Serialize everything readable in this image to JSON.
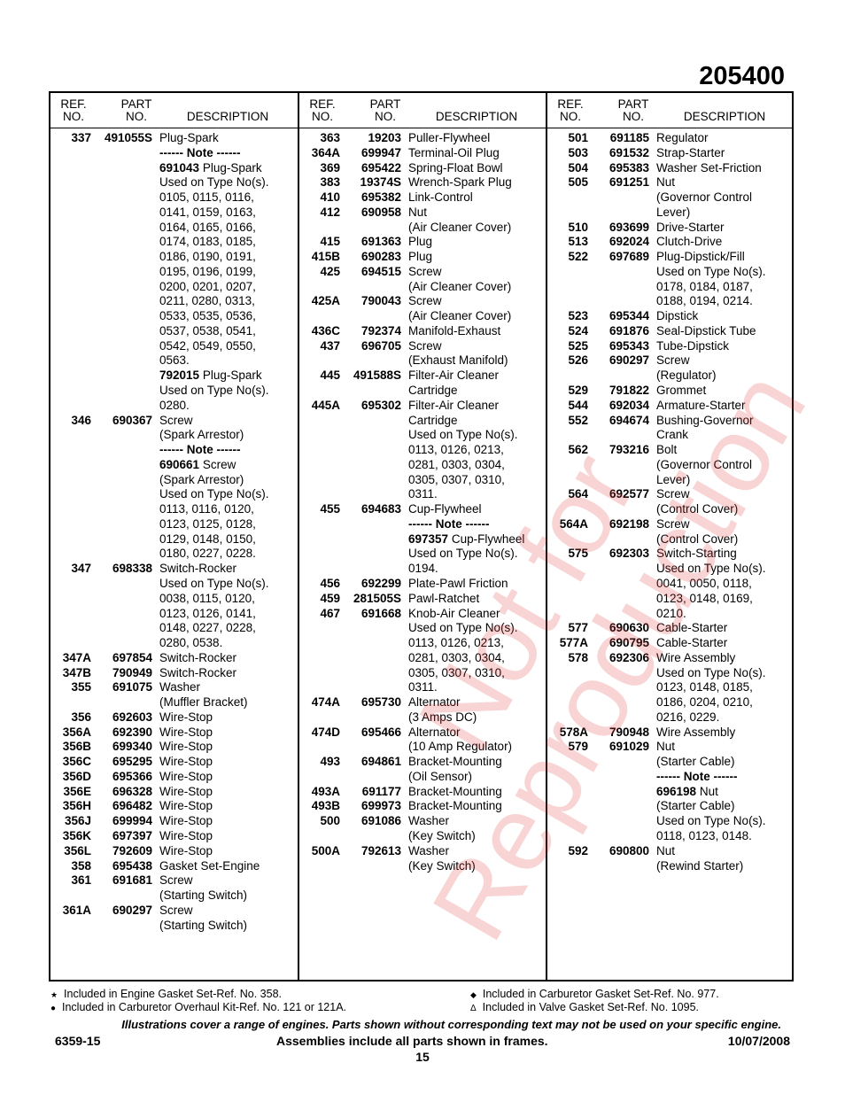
{
  "model": "205400",
  "headers": {
    "ref": "REF.\nNO.",
    "part": "PART\nNO.",
    "desc": "DESCRIPTION"
  },
  "watermark": "Not for\nReproduction",
  "columns": [
    [
      [
        "337",
        "491055S",
        "",
        "Plug-Spark"
      ],
      [
        "",
        "",
        "------ Note ------",
        ""
      ],
      [
        "",
        "",
        "691043",
        "Plug-Spark"
      ],
      [
        "",
        "",
        "",
        "Used on Type No(s)."
      ],
      [
        "",
        "",
        "",
        "0105, 0115, 0116,"
      ],
      [
        "",
        "",
        "",
        "0141, 0159, 0163,"
      ],
      [
        "",
        "",
        "",
        "0164, 0165, 0166,"
      ],
      [
        "",
        "",
        "",
        "0174, 0183, 0185,"
      ],
      [
        "",
        "",
        "",
        "0186, 0190, 0191,"
      ],
      [
        "",
        "",
        "",
        "0195, 0196, 0199,"
      ],
      [
        "",
        "",
        "",
        "0200, 0201, 0207,"
      ],
      [
        "",
        "",
        "",
        "0211, 0280, 0313,"
      ],
      [
        "",
        "",
        "",
        "0533, 0535, 0536,"
      ],
      [
        "",
        "",
        "",
        "0537, 0538, 0541,"
      ],
      [
        "",
        "",
        "",
        "0542, 0549, 0550,"
      ],
      [
        "",
        "",
        "",
        "0563."
      ],
      [
        "",
        "",
        "792015",
        "Plug-Spark"
      ],
      [
        "",
        "",
        "",
        "Used on Type No(s)."
      ],
      [
        "",
        "",
        "",
        "0280."
      ],
      [
        "346",
        "690367",
        "",
        "Screw"
      ],
      [
        "",
        "",
        "",
        "(Spark Arrestor)"
      ],
      [
        "",
        "",
        "------ Note ------",
        ""
      ],
      [
        "",
        "",
        "690661",
        "Screw"
      ],
      [
        "",
        "",
        "",
        "(Spark Arrestor)"
      ],
      [
        "",
        "",
        "",
        "Used on Type No(s)."
      ],
      [
        "",
        "",
        "",
        "0113, 0116, 0120,"
      ],
      [
        "",
        "",
        "",
        "0123, 0125, 0128,"
      ],
      [
        "",
        "",
        "",
        "0129, 0148, 0150,"
      ],
      [
        "",
        "",
        "",
        "0180, 0227, 0228."
      ],
      [
        "347",
        "698338",
        "",
        "Switch-Rocker"
      ],
      [
        "",
        "",
        "",
        "Used on Type No(s)."
      ],
      [
        "",
        "",
        "",
        "0038, 0115, 0120,"
      ],
      [
        "",
        "",
        "",
        "0123, 0126, 0141,"
      ],
      [
        "",
        "",
        "",
        "0148, 0227, 0228,"
      ],
      [
        "",
        "",
        "",
        "0280, 0538."
      ],
      [
        "347A",
        "697854",
        "",
        "Switch-Rocker"
      ],
      [
        "347B",
        "790949",
        "",
        "Switch-Rocker"
      ],
      [
        "355",
        "691075",
        "",
        "Washer"
      ],
      [
        "",
        "",
        "",
        "(Muffler Bracket)"
      ],
      [
        "356",
        "692603",
        "",
        "Wire-Stop"
      ],
      [
        "356A",
        "692390",
        "",
        "Wire-Stop"
      ],
      [
        "356B",
        "699340",
        "",
        "Wire-Stop"
      ],
      [
        "356C",
        "695295",
        "",
        "Wire-Stop"
      ],
      [
        "356D",
        "695366",
        "",
        "Wire-Stop"
      ],
      [
        "356E",
        "696328",
        "",
        "Wire-Stop"
      ],
      [
        "356H",
        "696482",
        "",
        "Wire-Stop"
      ],
      [
        "356J",
        "699994",
        "",
        "Wire-Stop"
      ],
      [
        "356K",
        "697397",
        "",
        "Wire-Stop"
      ],
      [
        "356L",
        "792609",
        "",
        "Wire-Stop"
      ],
      [
        "358",
        "695438",
        "",
        "Gasket Set-Engine"
      ],
      [
        "361",
        "691681",
        "",
        "Screw"
      ],
      [
        "",
        "",
        "",
        "(Starting Switch)"
      ],
      [
        "361A",
        "690297",
        "",
        "Screw"
      ],
      [
        "",
        "",
        "",
        "(Starting Switch)"
      ]
    ],
    [
      [
        "363",
        "19203",
        "",
        "Puller-Flywheel"
      ],
      [
        "364A",
        "699947",
        "",
        "Terminal-Oil Plug"
      ],
      [
        "369",
        "695422",
        "",
        "Spring-Float Bowl"
      ],
      [
        "383",
        "19374S",
        "",
        "Wrench-Spark Plug"
      ],
      [
        "410",
        "695382",
        "",
        "Link-Control"
      ],
      [
        "412",
        "690958",
        "",
        "Nut"
      ],
      [
        "",
        "",
        "",
        "(Air Cleaner Cover)"
      ],
      [
        "415",
        "691363",
        "",
        "Plug"
      ],
      [
        "415B",
        "690283",
        "",
        "Plug"
      ],
      [
        "425",
        "694515",
        "",
        "Screw"
      ],
      [
        "",
        "",
        "",
        "(Air Cleaner Cover)"
      ],
      [
        "425A",
        "790043",
        "",
        "Screw"
      ],
      [
        "",
        "",
        "",
        "(Air Cleaner Cover)"
      ],
      [
        "436C",
        "792374",
        "",
        "Manifold-Exhaust"
      ],
      [
        "437",
        "696705",
        "",
        "Screw"
      ],
      [
        "",
        "",
        "",
        "(Exhaust Manifold)"
      ],
      [
        "445",
        "491588S",
        "",
        "Filter-Air Cleaner"
      ],
      [
        "",
        "",
        "",
        "Cartridge"
      ],
      [
        "445A",
        "695302",
        "",
        "Filter-Air Cleaner"
      ],
      [
        "",
        "",
        "",
        "Cartridge"
      ],
      [
        "",
        "",
        "",
        "Used on Type No(s)."
      ],
      [
        "",
        "",
        "",
        "0113, 0126, 0213,"
      ],
      [
        "",
        "",
        "",
        "0281, 0303, 0304,"
      ],
      [
        "",
        "",
        "",
        "0305, 0307, 0310,"
      ],
      [
        "",
        "",
        "",
        "0311."
      ],
      [
        "455",
        "694683",
        "",
        "Cup-Flywheel"
      ],
      [
        "",
        "",
        "------ Note ------",
        ""
      ],
      [
        "",
        "",
        "697357",
        "Cup-Flywheel"
      ],
      [
        "",
        "",
        "",
        "Used on Type No(s)."
      ],
      [
        "",
        "",
        "",
        "0194."
      ],
      [
        "456",
        "692299",
        "",
        "Plate-Pawl Friction"
      ],
      [
        "459",
        "281505S",
        "",
        "Pawl-Ratchet"
      ],
      [
        "467",
        "691668",
        "",
        "Knob-Air Cleaner"
      ],
      [
        "",
        "",
        "",
        "Used on Type No(s)."
      ],
      [
        "",
        "",
        "",
        "0113, 0126, 0213,"
      ],
      [
        "",
        "",
        "",
        "0281, 0303, 0304,"
      ],
      [
        "",
        "",
        "",
        "0305, 0307, 0310,"
      ],
      [
        "",
        "",
        "",
        "0311."
      ],
      [
        "474A",
        "695730",
        "",
        "Alternator"
      ],
      [
        "",
        "",
        "",
        "(3 Amps DC)"
      ],
      [
        "474D",
        "695466",
        "",
        "Alternator"
      ],
      [
        "",
        "",
        "",
        "(10 Amp Regulator)"
      ],
      [
        "493",
        "694861",
        "",
        "Bracket-Mounting"
      ],
      [
        "",
        "",
        "",
        "(Oil Sensor)"
      ],
      [
        "493A",
        "691177",
        "",
        "Bracket-Mounting"
      ],
      [
        "493B",
        "699973",
        "",
        "Bracket-Mounting"
      ],
      [
        "500",
        "691086",
        "",
        "Washer"
      ],
      [
        "",
        "",
        "",
        "(Key Switch)"
      ],
      [
        "500A",
        "792613",
        "",
        "Washer"
      ],
      [
        "",
        "",
        "",
        "(Key Switch)"
      ]
    ],
    [
      [
        "501",
        "691185",
        "",
        "Regulator"
      ],
      [
        "503",
        "691532",
        "",
        "Strap-Starter"
      ],
      [
        "504",
        "695383",
        "",
        "Washer Set-Friction"
      ],
      [
        "505",
        "691251",
        "",
        "Nut"
      ],
      [
        "",
        "",
        "",
        "(Governor Control"
      ],
      [
        "",
        "",
        "",
        "Lever)"
      ],
      [
        "510",
        "693699",
        "",
        "Drive-Starter"
      ],
      [
        "513",
        "692024",
        "",
        "Clutch-Drive"
      ],
      [
        "522",
        "697689",
        "",
        "Plug-Dipstick/Fill"
      ],
      [
        "",
        "",
        "",
        "Used on Type No(s)."
      ],
      [
        "",
        "",
        "",
        "0178, 0184, 0187,"
      ],
      [
        "",
        "",
        "",
        "0188, 0194, 0214."
      ],
      [
        "523",
        "695344",
        "",
        "Dipstick"
      ],
      [
        "524",
        "691876",
        "",
        "Seal-Dipstick Tube"
      ],
      [
        "525",
        "695343",
        "",
        "Tube-Dipstick"
      ],
      [
        "526",
        "690297",
        "",
        "Screw"
      ],
      [
        "",
        "",
        "",
        "(Regulator)"
      ],
      [
        "529",
        "791822",
        "",
        "Grommet"
      ],
      [
        "544",
        "692034",
        "",
        "Armature-Starter"
      ],
      [
        "552",
        "694674",
        "",
        "Bushing-Governor"
      ],
      [
        "",
        "",
        "",
        "Crank"
      ],
      [
        "562",
        "793216",
        "",
        "Bolt"
      ],
      [
        "",
        "",
        "",
        "(Governor Control"
      ],
      [
        "",
        "",
        "",
        "Lever)"
      ],
      [
        "564",
        "692577",
        "",
        "Screw"
      ],
      [
        "",
        "",
        "",
        "(Control Cover)"
      ],
      [
        "564A",
        "692198",
        "",
        "Screw"
      ],
      [
        "",
        "",
        "",
        "(Control Cover)"
      ],
      [
        "575",
        "692303",
        "",
        "Switch-Starting"
      ],
      [
        "",
        "",
        "",
        "Used on Type No(s)."
      ],
      [
        "",
        "",
        "",
        "0041, 0050, 0118,"
      ],
      [
        "",
        "",
        "",
        "0123, 0148, 0169,"
      ],
      [
        "",
        "",
        "",
        "0210."
      ],
      [
        "577",
        "690630",
        "",
        "Cable-Starter"
      ],
      [
        "577A",
        "690795",
        "",
        "Cable-Starter"
      ],
      [
        "578",
        "692306",
        "",
        "Wire Assembly"
      ],
      [
        "",
        "",
        "",
        "Used on Type No(s)."
      ],
      [
        "",
        "",
        "",
        "0123, 0148, 0185,"
      ],
      [
        "",
        "",
        "",
        "0186, 0204, 0210,"
      ],
      [
        "",
        "",
        "",
        "0216, 0229."
      ],
      [
        "578A",
        "790948",
        "",
        "Wire Assembly"
      ],
      [
        "579",
        "691029",
        "",
        "Nut"
      ],
      [
        "",
        "",
        "",
        "(Starter Cable)"
      ],
      [
        "",
        "",
        "------ Note ------",
        ""
      ],
      [
        "",
        "",
        "696198",
        "Nut"
      ],
      [
        "",
        "",
        "",
        "(Starter Cable)"
      ],
      [
        "",
        "",
        "",
        "Used on Type No(s)."
      ],
      [
        "",
        "",
        "",
        "0118, 0123, 0148."
      ],
      [
        "592",
        "690800",
        "",
        "Nut"
      ],
      [
        "",
        "",
        "",
        "(Rewind Starter)"
      ]
    ]
  ],
  "legend": [
    {
      "symbol": "★",
      "icon": "star-icon",
      "text": "Included in Engine Gasket Set-Ref. No. 358."
    },
    {
      "symbol": "●",
      "icon": "dot-icon",
      "text": "Included in Carburetor Overhaul Kit-Ref. No. 121 or 121A."
    },
    {
      "symbol": "◆",
      "icon": "diamond-icon",
      "text": "Included in Carburetor Gasket Set-Ref. No. 977."
    },
    {
      "symbol": "Δ",
      "icon": "delta-icon",
      "text": "Included in Valve Gasket Set-Ref. No. 1095."
    }
  ],
  "footer": {
    "disclaimer": "Illustrations cover a range of engines. Parts shown without corresponding text may not be used on your specific engine.",
    "doc_no": "6359-15",
    "assemblies": "Assemblies include all parts shown in frames.",
    "date": "10/07/2008",
    "page": "15"
  }
}
